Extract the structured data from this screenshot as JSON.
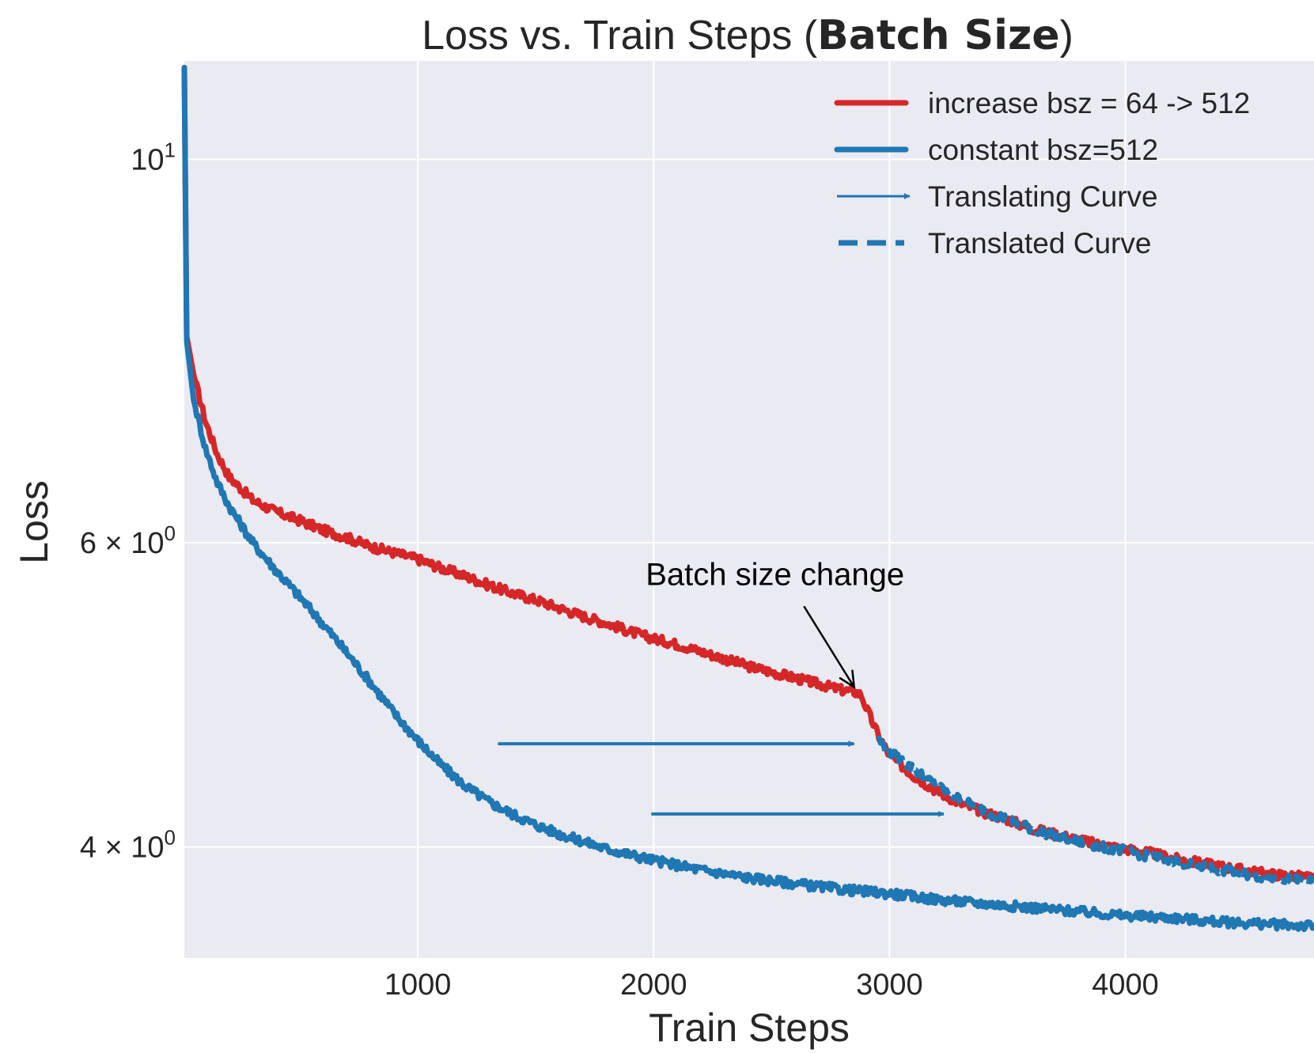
{
  "chart_data": {
    "type": "line",
    "title": {
      "prefix": "Loss vs. Train Steps (",
      "bold": "Batch Size",
      "suffix": ")"
    },
    "xlabel": "Train Steps",
    "ylabel": "Loss",
    "yscale": "log",
    "xlim": [
      10,
      4800
    ],
    "ylim": [
      3.45,
      11.4
    ],
    "xticks": [
      {
        "value": 1000,
        "label": "1000"
      },
      {
        "value": 2000,
        "label": "2000"
      },
      {
        "value": 3000,
        "label": "3000"
      },
      {
        "value": 4000,
        "label": "4000"
      }
    ],
    "yticks": [
      {
        "value": 10,
        "base": "10",
        "exp": "1"
      },
      {
        "value": 6,
        "base": "6 × 10",
        "exp": "0"
      },
      {
        "value": 4,
        "base": "4 × 10",
        "exp": "0"
      }
    ],
    "grid": true,
    "legend_position": "top-right",
    "legend": [
      {
        "label": "increase bsz = 64 -> 512",
        "style": "solid-thick",
        "color": "#d62728"
      },
      {
        "label": "constant bsz=512",
        "style": "solid-thick",
        "color": "#1f77b4"
      },
      {
        "label": "Translating Curve",
        "style": "arrow",
        "color": "#1f77b4"
      },
      {
        "label": "Translated Curve",
        "style": "dashed",
        "color": "#1f77b4"
      }
    ],
    "series": [
      {
        "name": "increase bsz = 64 -> 512",
        "color": "#d62728",
        "x": [
          10,
          20,
          50,
          100,
          150,
          200,
          300,
          400,
          500,
          600,
          700,
          800,
          900,
          1000,
          1100,
          1200,
          1300,
          1400,
          1500,
          1600,
          1700,
          1800,
          1900,
          2000,
          2100,
          2200,
          2300,
          2400,
          2500,
          2600,
          2700,
          2800,
          2850,
          2880,
          2900,
          2950,
          3000,
          3100,
          3200,
          3300,
          3400,
          3500,
          3600,
          3700,
          3800,
          3900,
          4000,
          4100,
          4200,
          4300,
          4400,
          4500,
          4600,
          4700,
          4800
        ],
        "y": [
          11.3,
          7.9,
          7.5,
          7.05,
          6.75,
          6.55,
          6.35,
          6.25,
          6.18,
          6.1,
          6.04,
          5.97,
          5.92,
          5.87,
          5.8,
          5.74,
          5.67,
          5.61,
          5.56,
          5.5,
          5.44,
          5.39,
          5.33,
          5.28,
          5.24,
          5.19,
          5.14,
          5.09,
          5.05,
          5.01,
          4.97,
          4.93,
          4.92,
          4.9,
          4.82,
          4.65,
          4.52,
          4.4,
          4.31,
          4.24,
          4.19,
          4.15,
          4.1,
          4.07,
          4.04,
          4.01,
          3.99,
          3.97,
          3.94,
          3.92,
          3.9,
          3.88,
          3.86,
          3.85,
          3.84
        ]
      },
      {
        "name": "constant bsz=512",
        "color": "#1f77b4",
        "x": [
          10,
          20,
          50,
          100,
          150,
          200,
          300,
          400,
          500,
          600,
          700,
          800,
          900,
          1000,
          1100,
          1200,
          1300,
          1400,
          1500,
          1600,
          1700,
          1800,
          1900,
          2000,
          2200,
          2400,
          2600,
          2800,
          3000,
          3200,
          3400,
          3600,
          3800,
          4000,
          4200,
          4400,
          4600,
          4800
        ],
        "y": [
          11.3,
          7.85,
          7.25,
          6.8,
          6.5,
          6.3,
          6.0,
          5.78,
          5.58,
          5.38,
          5.18,
          4.98,
          4.78,
          4.61,
          4.46,
          4.34,
          4.25,
          4.18,
          4.12,
          4.07,
          4.03,
          3.99,
          3.96,
          3.93,
          3.88,
          3.84,
          3.81,
          3.78,
          3.76,
          3.73,
          3.71,
          3.69,
          3.67,
          3.65,
          3.64,
          3.62,
          3.61,
          3.6
        ]
      },
      {
        "name": "Translated Curve",
        "color": "#1f77b4",
        "dashed": true,
        "x": [
          2950,
          3000,
          3100,
          3200,
          3300,
          3400,
          3500,
          3600,
          3700,
          3800,
          3900,
          4000,
          4100,
          4200,
          4300,
          4400,
          4500,
          4600,
          4700,
          4800
        ],
        "y": [
          4.62,
          4.54,
          4.44,
          4.34,
          4.26,
          4.2,
          4.15,
          4.1,
          4.06,
          4.03,
          4.0,
          3.98,
          3.95,
          3.93,
          3.9,
          3.88,
          3.86,
          3.84,
          3.83,
          3.82
        ]
      }
    ],
    "arrows": [
      {
        "name": "translating-arrow-1",
        "x0": 1340,
        "x1": 2850,
        "y": 4.59,
        "color": "#1f77b4"
      },
      {
        "name": "translating-arrow-2",
        "x0": 1990,
        "x1": 3230,
        "y": 4.18,
        "color": "#1f77b4"
      }
    ],
    "annotation": {
      "text": "Batch size change",
      "target_x": 2850,
      "target_y": 4.95,
      "text_x": 2000,
      "text_y": 5.72
    }
  }
}
